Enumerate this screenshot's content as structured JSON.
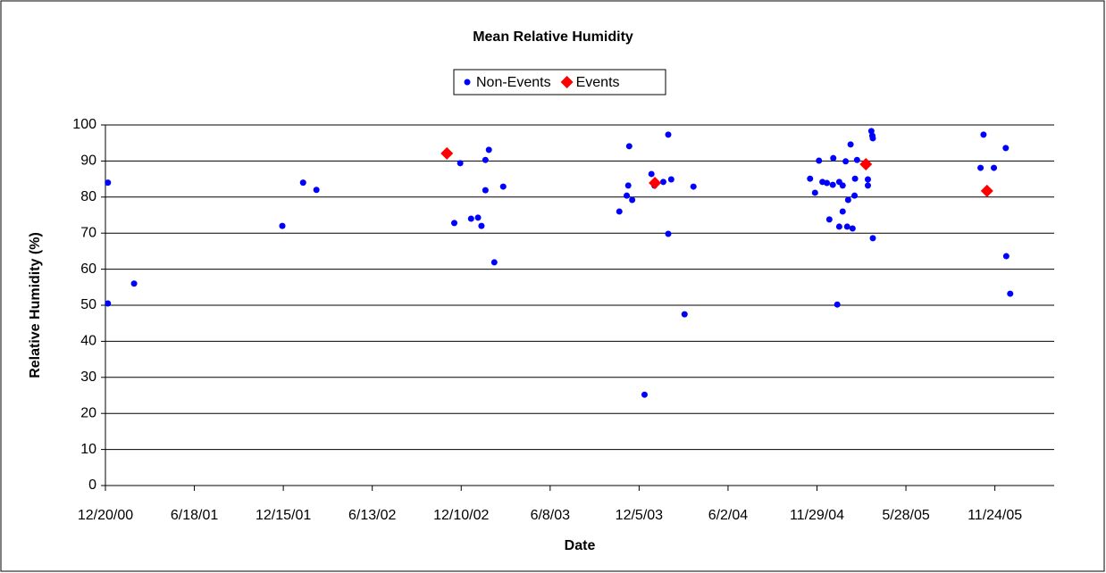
{
  "chart_data": {
    "type": "scatter",
    "title": "Mean Relative Humidity",
    "x_label": "Date",
    "y_label": "Relative Humidity (%)",
    "xlim": [
      "12/20/00",
      "3/24/06"
    ],
    "xticks": [
      "12/20/00",
      "6/18/01",
      "12/15/01",
      "6/13/02",
      "12/10/02",
      "6/8/03",
      "12/5/03",
      "6/2/04",
      "11/29/04",
      "5/28/05",
      "11/24/05"
    ],
    "ylim": [
      0,
      100
    ],
    "yticks": [
      0,
      10,
      20,
      30,
      40,
      50,
      60,
      70,
      80,
      90,
      100
    ],
    "grid": true,
    "legend": "top",
    "series": [
      {
        "name": "Non-Events",
        "color": "#0000ff",
        "marker": "circle",
        "x": [
          "12/25/00",
          "12/25/00",
          "2/16/01",
          "12/13/01",
          "1/24/02",
          "2/20/02",
          "11/26/02",
          "12/8/02",
          "12/30/02",
          "1/13/03",
          "1/20/03",
          "1/28/03",
          "1/28/03",
          "2/4/03",
          "2/15/03",
          "3/5/03",
          "10/26/03",
          "11/10/03",
          "11/13/03",
          "11/15/03",
          "11/21/03",
          "12/16/03",
          "12/30/03",
          "1/5/04",
          "1/23/04",
          "2/2/04",
          "2/2/04",
          "2/8/04",
          "3/6/04",
          "3/24/04",
          "11/15/04",
          "11/25/04",
          "12/3/04",
          "12/10/04",
          "12/19/04",
          "12/24/04",
          "12/31/04",
          "1/1/05",
          "1/9/05",
          "1/13/05",
          "1/13/05",
          "1/20/05",
          "1/20/05",
          "1/26/05",
          "1/29/05",
          "1/31/05",
          "2/5/05",
          "2/9/05",
          "2/13/05",
          "2/14/05",
          "2/18/05",
          "3/12/05",
          "3/12/05",
          "3/19/05",
          "3/21/05",
          "3/22/05",
          "3/22/05",
          "10/26/05",
          "11/1/05",
          "11/22/05",
          "12/16/05",
          "12/17/05",
          "12/25/05"
        ],
        "values": [
          84,
          50.5,
          56,
          72,
          84,
          82,
          72.8,
          89.4,
          74,
          74.3,
          72,
          81.9,
          90.3,
          93.1,
          61.9,
          82.9,
          76,
          80.4,
          83.2,
          94.1,
          79.2,
          25.2,
          86.4,
          83.2,
          84.2,
          97.3,
          69.8,
          84.9,
          47.5,
          82.9,
          85.1,
          81.2,
          90.1,
          84.2,
          83.9,
          73.8,
          83.4,
          90.8,
          50.2,
          71.8,
          84.2,
          83.2,
          76,
          89.9,
          71.8,
          79.2,
          94.6,
          71.3,
          80.4,
          85.1,
          90.3,
          84.9,
          83.2,
          98.3,
          97,
          96.3,
          68.6,
          88.1,
          97.3,
          88.1,
          93.6,
          63.6,
          53.2
        ]
      },
      {
        "name": "Events",
        "color": "#ff0000",
        "marker": "diamond",
        "x": [
          "11/11/02",
          "1/6/04",
          "3/8/05",
          "11/8/05"
        ],
        "values": [
          92.1,
          83.9,
          89.1,
          81.7
        ]
      }
    ]
  }
}
